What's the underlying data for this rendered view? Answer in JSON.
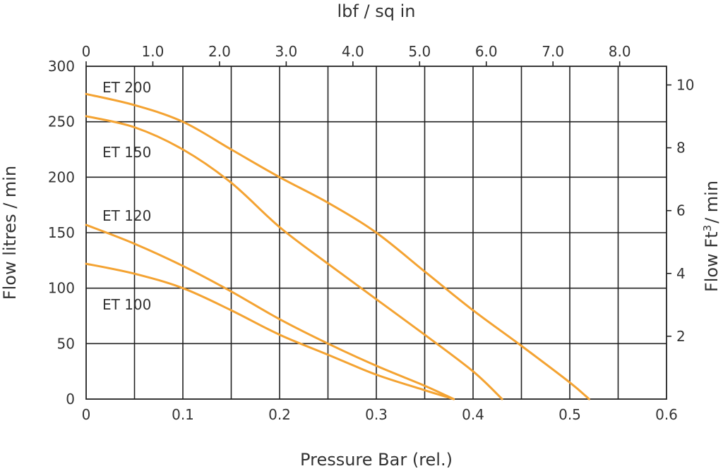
{
  "chart_data": {
    "type": "line",
    "xlabel": "Pressure Bar (rel.)",
    "ylabel": "Flow litres / min",
    "x2label": "lbf / sq in",
    "y2label_main": "Flow  Ft",
    "y2label_sup": "3",
    "y2label_tail": "/ min",
    "xlim": [
      0,
      0.6
    ],
    "ylim": [
      0,
      300
    ],
    "x_ticks": [
      0,
      0.1,
      0.2,
      0.3,
      0.4,
      0.5,
      0.6
    ],
    "x_tick_labels": [
      "0",
      "0.1",
      "0.2",
      "0.3",
      "0.4",
      "0.5",
      "0.6"
    ],
    "y_ticks": [
      0,
      50,
      100,
      150,
      200,
      250,
      300
    ],
    "y_tick_labels": [
      "0",
      "50",
      "100",
      "150",
      "200",
      "250",
      "300"
    ],
    "x2_ticks": [
      0,
      1.0,
      2.0,
      3.0,
      4.0,
      5.0,
      6.0,
      7.0,
      8.0
    ],
    "x2_tick_labels": [
      "0",
      "1.0",
      "2.0",
      "3.0",
      "4.0",
      "5.0",
      "6.0",
      "7.0",
      "8.0"
    ],
    "y2_ticks": [
      2,
      4,
      6,
      8,
      10
    ],
    "y2_tick_labels": [
      "2",
      "4",
      "6",
      "8",
      "10"
    ],
    "grid": true,
    "line_color": "#f4a332",
    "series": [
      {
        "name": "ET 200",
        "x": [
          0,
          0.05,
          0.1,
          0.15,
          0.2,
          0.25,
          0.3,
          0.35,
          0.4,
          0.45,
          0.5,
          0.52
        ],
        "y": [
          275,
          265,
          250,
          225,
          200,
          177,
          150,
          115,
          80,
          48,
          15,
          0
        ]
      },
      {
        "name": "ET 150",
        "x": [
          0,
          0.05,
          0.1,
          0.15,
          0.2,
          0.25,
          0.3,
          0.35,
          0.4,
          0.43
        ],
        "y": [
          255,
          245,
          225,
          195,
          155,
          122,
          90,
          58,
          25,
          0
        ]
      },
      {
        "name": "ET 120",
        "x": [
          0,
          0.05,
          0.1,
          0.15,
          0.2,
          0.25,
          0.3,
          0.35,
          0.38
        ],
        "y": [
          157,
          140,
          120,
          97,
          72,
          50,
          30,
          12,
          0
        ]
      },
      {
        "name": "ET 100",
        "x": [
          0,
          0.05,
          0.1,
          0.15,
          0.2,
          0.25,
          0.3,
          0.35,
          0.38
        ],
        "y": [
          122,
          113,
          100,
          80,
          58,
          40,
          22,
          8,
          0
        ]
      }
    ]
  }
}
